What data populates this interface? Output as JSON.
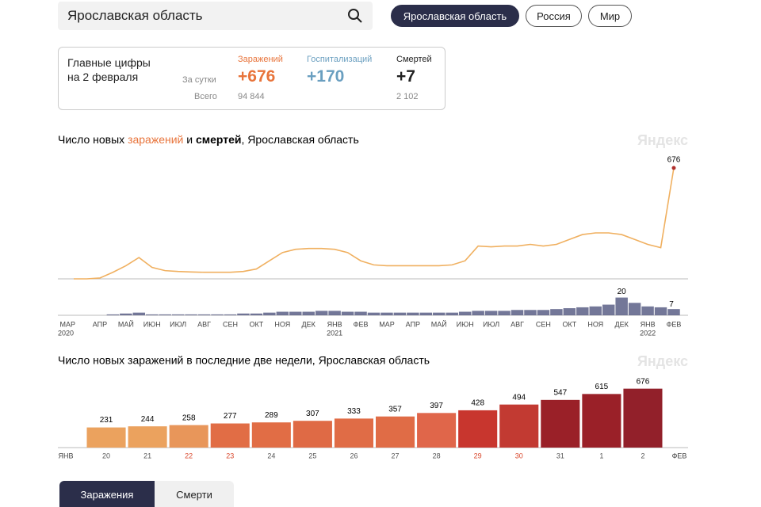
{
  "search": {
    "query": "Ярославская область"
  },
  "region_tabs": [
    {
      "label": "Ярославская область",
      "active": true
    },
    {
      "label": "Россия",
      "active": false
    },
    {
      "label": "Мир",
      "active": false
    }
  ],
  "summary": {
    "heading": [
      "Главные цифры",
      "на 2 февраля"
    ],
    "row_labels": [
      "За сутки",
      "Всего"
    ],
    "columns": [
      {
        "label": "Заражений",
        "today": "+676",
        "total": "94 844",
        "color": "#e8743b"
      },
      {
        "label": "Госпитализаций",
        "today": "+170",
        "total": null,
        "color": "#6a9fc0"
      },
      {
        "label": "Смертей",
        "today": "+7",
        "total": "2 102",
        "color": "#222222"
      }
    ]
  },
  "watermark": "Яндекс",
  "chart_data": [
    {
      "type": "line",
      "title_parts": [
        {
          "text": "Число новых ",
          "style": "plain"
        },
        {
          "text": "заражений",
          "style": "infections"
        },
        {
          "text": " и ",
          "style": "plain"
        },
        {
          "text": "смертей",
          "style": "deaths"
        },
        {
          "text": ", Ярославская область",
          "style": "plain"
        }
      ],
      "categories": [
        "МАР",
        null,
        "АПР",
        null,
        "МАЙ",
        null,
        "ИЮН",
        null,
        "ИЮЛ",
        null,
        "АВГ",
        null,
        "СЕН",
        null,
        "ОКТ",
        null,
        "НОЯ",
        null,
        "ДЕК",
        null,
        "ЯНВ",
        null,
        "ФЕВ",
        null,
        "МАР",
        null,
        "АПР",
        null,
        "МАЙ",
        null,
        "ИЮН",
        null,
        "ИЮЛ",
        null,
        "АВГ",
        null,
        "СЕН",
        null,
        "ОКТ",
        null,
        "НОЯ",
        null,
        "ДЕК",
        null,
        "ЯНВ",
        null,
        "ФЕВ"
      ],
      "years": [
        "2020",
        "2021",
        "2022"
      ],
      "series": [
        {
          "name": "заражений",
          "color": "#f0b060",
          "values": [
            0,
            0,
            5,
            40,
            80,
            130,
            70,
            50,
            45,
            42,
            40,
            40,
            40,
            45,
            60,
            110,
            160,
            180,
            185,
            185,
            180,
            160,
            110,
            85,
            80,
            80,
            80,
            80,
            80,
            85,
            110,
            200,
            195,
            200,
            200,
            210,
            200,
            210,
            240,
            270,
            280,
            280,
            270,
            240,
            210,
            190,
            676
          ]
        },
        {
          "name": "смертей",
          "color": "#5a5f86",
          "values": [
            0,
            0,
            0,
            1,
            2,
            3,
            1,
            1,
            1,
            1,
            1,
            1,
            1,
            2,
            2,
            3,
            4,
            4,
            4,
            5,
            5,
            4,
            4,
            3,
            3,
            3,
            3,
            3,
            3,
            3,
            4,
            5,
            5,
            5,
            6,
            6,
            6,
            7,
            8,
            9,
            10,
            12,
            20,
            14,
            10,
            9,
            7
          ]
        }
      ],
      "ylim": [
        0,
        700
      ],
      "y2lim": [
        0,
        25
      ]
    },
    {
      "type": "bar",
      "title": "Число новых заражений в последние две недели, Ярославская область",
      "start_label": "ЯНВ",
      "end_label": "ФЕВ",
      "categories": [
        "20",
        "21",
        "22",
        "23",
        "24",
        "25",
        "26",
        "27",
        "28",
        "29",
        "30",
        "31",
        "1",
        "2"
      ],
      "label_colors": [
        "#555555",
        "#555555",
        "#d9472b",
        "#d9472b",
        "#555555",
        "#555555",
        "#555555",
        "#555555",
        "#555555",
        "#d9472b",
        "#d9472b",
        "#555555",
        "#555555",
        "#555555"
      ],
      "values": [
        231,
        244,
        258,
        277,
        289,
        307,
        333,
        357,
        397,
        428,
        494,
        547,
        615,
        676
      ],
      "colors": [
        "#eba25e",
        "#eba25e",
        "#e8965a",
        "#e16d45",
        "#e16d45",
        "#df6a45",
        "#e06c46",
        "#e06c46",
        "#e0664a",
        "#c8362e",
        "#c23a32",
        "#9a2028",
        "#9a2028",
        "#92202a"
      ],
      "ylim": [
        0,
        700
      ]
    }
  ],
  "bottom_tabs": [
    {
      "label": "Заражения",
      "active": true
    },
    {
      "label": "Смерти",
      "active": false
    }
  ]
}
